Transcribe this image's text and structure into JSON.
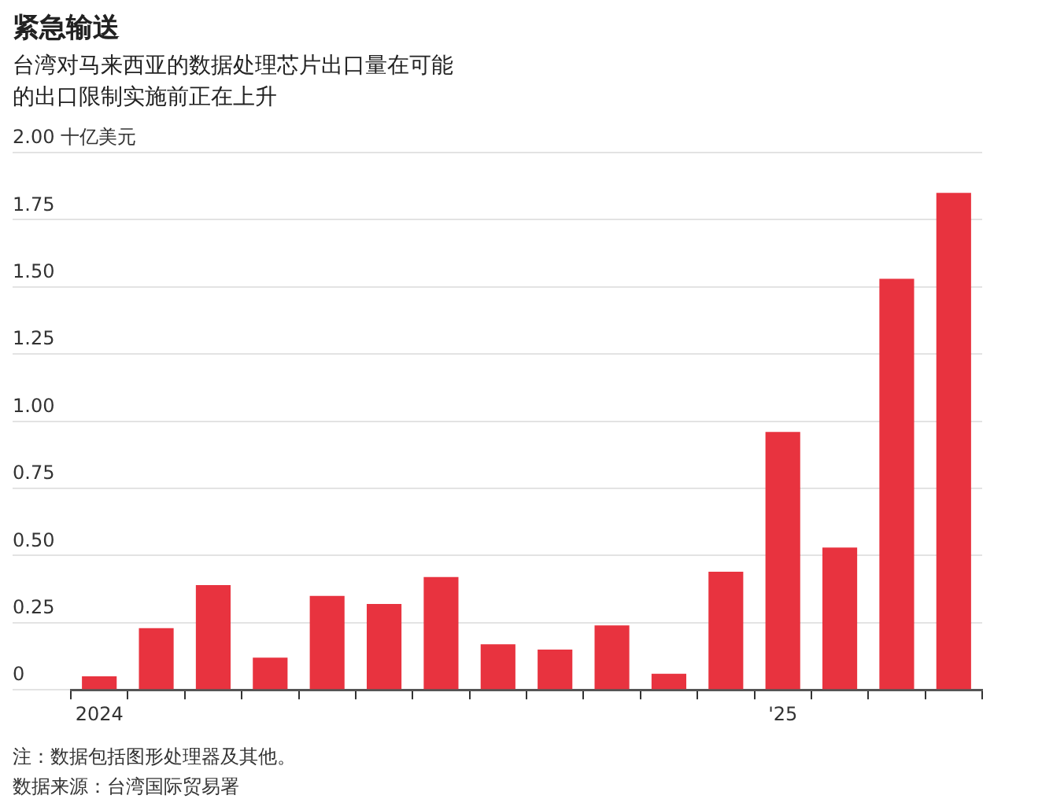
{
  "chart_data": {
    "type": "bar",
    "title": "紧急输送",
    "subtitle": "台湾对马来西亚的数据处理芯片出口量在可能的出口限制实施前正在上升",
    "categories": [
      "2024",
      null,
      null,
      null,
      null,
      null,
      null,
      null,
      null,
      null,
      null,
      null,
      "'25",
      null,
      null,
      null
    ],
    "values": [
      0.05,
      0.23,
      0.39,
      0.12,
      0.35,
      0.32,
      0.42,
      0.17,
      0.15,
      0.24,
      0.06,
      0.44,
      0.96,
      0.53,
      1.53,
      1.85
    ],
    "color": "#e8333f",
    "ylim": [
      0,
      2
    ],
    "yticks": [
      0,
      {
        "value": 0.25,
        "label": "0.25"
      },
      {
        "value": 0.5,
        "label": "0.50"
      },
      {
        "value": 0.75,
        "label": "0.75"
      },
      {
        "value": 1,
        "label": "1.00"
      },
      {
        "value": 1.25,
        "label": "1.25"
      },
      {
        "value": 1.5,
        "label": "1.50"
      },
      {
        "value": 1.75,
        "label": "1.75"
      },
      {
        "value": 2,
        "label": "2.00"
      }
    ],
    "ylabel": "十亿美元",
    "grid": "y",
    "legend": false,
    "annotations": [
      "注：数据包括图形处理器及其他。",
      "数据来源：台湾国际贸易署"
    ]
  }
}
